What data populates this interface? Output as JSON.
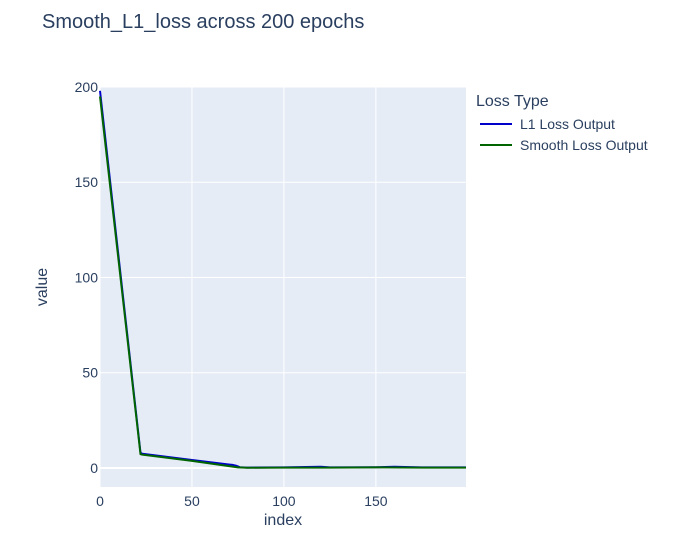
{
  "chart_data": {
    "type": "line",
    "title": "Smooth_L1_loss across 200 epochs",
    "xlabel": "index",
    "ylabel": "value",
    "xlim": [
      0,
      199
    ],
    "ylim": [
      -10,
      200
    ],
    "xticks": [
      0,
      50,
      100,
      150
    ],
    "yticks": [
      0,
      50,
      100,
      150,
      200
    ],
    "grid": true,
    "legend": {
      "title": "Loss Type",
      "placement": "right"
    },
    "series": [
      {
        "name": "L1 Loss Output",
        "color": "#0000cc",
        "x": [
          0,
          22,
          23,
          50,
          70,
          72,
          74,
          76,
          80,
          100,
          120,
          125,
          150,
          160,
          175,
          199
        ],
        "y": [
          198,
          8,
          7.5,
          4.2,
          1.8,
          1.6,
          1.2,
          0.4,
          0.2,
          0.3,
          0.6,
          0.3,
          0.4,
          0.6,
          0.3,
          0.3
        ]
      },
      {
        "name": "Smooth Loss Output",
        "color": "#006400",
        "x": [
          0,
          22,
          23,
          50,
          75,
          80,
          100,
          125,
          150,
          175,
          199
        ],
        "y": [
          195,
          7.2,
          7,
          3.7,
          0.3,
          0.1,
          0.2,
          0.2,
          0.3,
          0.2,
          0.2
        ]
      }
    ]
  }
}
